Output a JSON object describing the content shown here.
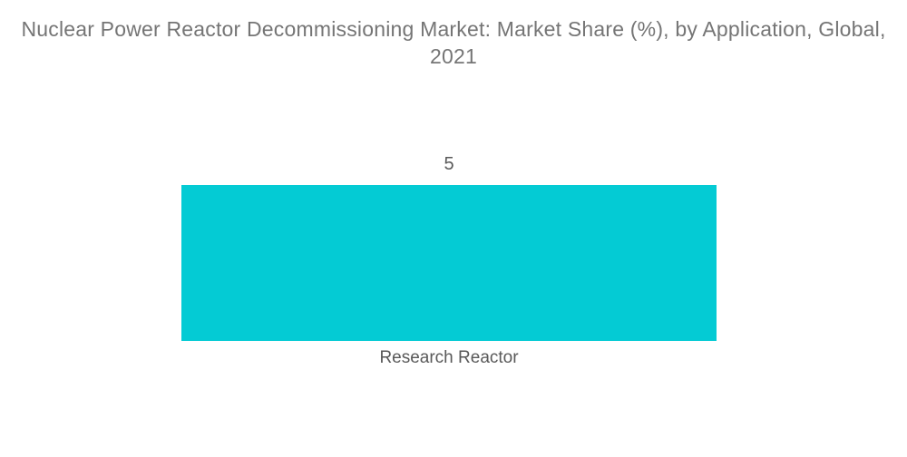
{
  "page": {
    "background": "#ffffff"
  },
  "chart_data": {
    "type": "bar",
    "title": "Nuclear Power Reactor Decommissioning Market: Market Share (%), by Application, Global, 2021",
    "title_lines": [
      "Nuclear Power Reactor Decommissioning Market: Market Share (%), by Application, Global,",
      "2021"
    ],
    "categories": [
      "Research Reactor"
    ],
    "values": [
      5
    ],
    "data_labels": [
      "5"
    ],
    "xlabel": "",
    "ylabel": "",
    "legend_position": "none",
    "grid": false,
    "axes_visible": false,
    "ylim": [
      0,
      5.75
    ],
    "colors": {
      "bar": "#04CBD4",
      "title_text": "#757575",
      "label_text": "#595959",
      "background": "#ffffff"
    }
  }
}
